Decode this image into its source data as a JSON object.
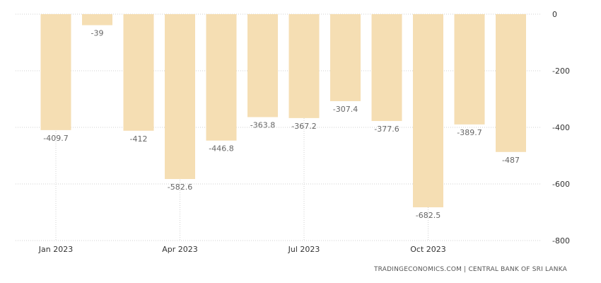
{
  "source": "TRADINGECONOMICS.COM | CENTRAL BANK OF SRI LANKA",
  "colors": {
    "bar": "#f5deb3",
    "grid": "#d0d0d0",
    "axis_text": "#333333",
    "label_text": "#666666"
  },
  "chart_data": {
    "type": "bar",
    "categories": [
      "Jan 2023",
      "Feb 2023",
      "Mar 2023",
      "Apr 2023",
      "May 2023",
      "Jun 2023",
      "Jul 2023",
      "Aug 2023",
      "Sep 2023",
      "Oct 2023",
      "Nov 2023",
      "Dec 2023"
    ],
    "values": [
      -409.7,
      -39,
      -412,
      -582.6,
      -446.8,
      -363.8,
      -367.2,
      -307.4,
      -377.6,
      -682.5,
      -389.7,
      -487
    ],
    "data_labels": [
      "-409.7",
      "-39",
      "-412",
      "-582.6",
      "-446.8",
      "-363.8",
      "-367.2",
      "-307.4",
      "-377.6",
      "-682.5",
      "-389.7",
      "-487"
    ],
    "x_ticks": [
      "Jan 2023",
      "Apr 2023",
      "Jul 2023",
      "Oct 2023"
    ],
    "y_ticks": [
      0,
      -200,
      -400,
      -600,
      -800
    ],
    "y_tick_labels": [
      "0",
      "-200",
      "-400",
      "-600",
      "-800"
    ],
    "ylim": [
      -800,
      0
    ],
    "y_axis_position": "right",
    "grid": true,
    "title": "",
    "xlabel": "",
    "ylabel": ""
  }
}
